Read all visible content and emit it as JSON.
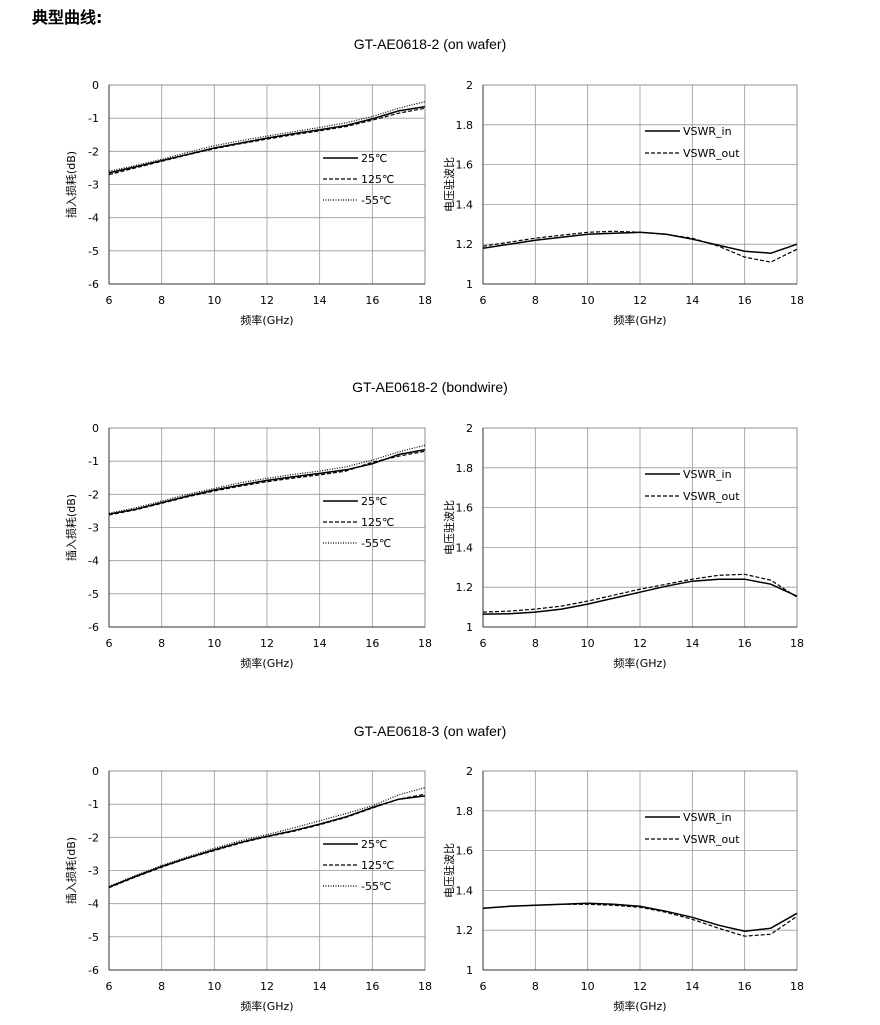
{
  "page": {
    "heading": "典型曲线:"
  },
  "sections": [
    {
      "title": "GT-AE0618-2  (on wafer)"
    },
    {
      "title": "GT-AE0618-2  (bondwire)"
    },
    {
      "title": "GT-AE0618-3  (on wafer)"
    }
  ],
  "chart_data": [
    {
      "type": "line",
      "xlabel": "频率(GHz)",
      "ylabel": "插入损耗(dB)",
      "xlim": [
        6,
        18
      ],
      "ylim": [
        -6,
        0
      ],
      "xticks": [
        6,
        8,
        10,
        12,
        14,
        16,
        18
      ],
      "yticks": [
        0,
        -1,
        -2,
        -3,
        -4,
        -5,
        -6
      ],
      "grid": true,
      "legend": "center-right",
      "x": [
        6,
        7,
        8,
        9,
        10,
        11,
        12,
        13,
        14,
        15,
        16,
        17,
        18
      ],
      "series": [
        {
          "name": "25℃",
          "style": "solid",
          "values": [
            -2.65,
            -2.47,
            -2.28,
            -2.09,
            -1.9,
            -1.75,
            -1.6,
            -1.47,
            -1.35,
            -1.22,
            -1.02,
            -0.78,
            -0.65
          ]
        },
        {
          "name": "125℃",
          "style": "dashed",
          "values": [
            -2.7,
            -2.5,
            -2.3,
            -2.1,
            -1.92,
            -1.77,
            -1.63,
            -1.5,
            -1.38,
            -1.25,
            -1.06,
            -0.85,
            -0.7
          ]
        },
        {
          "name": "-55℃",
          "style": "dotted",
          "values": [
            -2.6,
            -2.43,
            -2.24,
            -2.03,
            -1.83,
            -1.68,
            -1.54,
            -1.41,
            -1.28,
            -1.14,
            -0.95,
            -0.7,
            -0.5
          ]
        }
      ]
    },
    {
      "type": "line",
      "xlabel": "频率(GHz)",
      "ylabel": "电压驻波比",
      "xlim": [
        6,
        18
      ],
      "ylim": [
        1,
        2
      ],
      "xticks": [
        6,
        8,
        10,
        12,
        14,
        16,
        18
      ],
      "yticks": [
        2,
        1.8,
        1.6,
        1.4,
        1.2,
        1
      ],
      "grid": true,
      "legend": "top-right",
      "x": [
        6,
        7,
        8,
        9,
        10,
        11,
        12,
        13,
        14,
        15,
        16,
        17,
        18
      ],
      "series": [
        {
          "name": "VSWR_in",
          "style": "solid",
          "values": [
            1.18,
            1.2,
            1.22,
            1.235,
            1.25,
            1.255,
            1.26,
            1.25,
            1.225,
            1.195,
            1.165,
            1.155,
            1.2
          ]
        },
        {
          "name": "VSWR_out",
          "style": "dashed",
          "values": [
            1.19,
            1.21,
            1.23,
            1.245,
            1.26,
            1.265,
            1.26,
            1.25,
            1.23,
            1.19,
            1.135,
            1.11,
            1.175
          ]
        }
      ]
    },
    {
      "type": "line",
      "xlabel": "频率(GHz)",
      "ylabel": "插入损耗(dB)",
      "xlim": [
        6,
        18
      ],
      "ylim": [
        -6,
        0
      ],
      "xticks": [
        6,
        8,
        10,
        12,
        14,
        16,
        18
      ],
      "yticks": [
        0,
        -1,
        -2,
        -3,
        -4,
        -5,
        -6
      ],
      "grid": true,
      "legend": "center-right",
      "x": [
        6,
        7,
        8,
        9,
        10,
        11,
        12,
        13,
        14,
        15,
        16,
        17,
        18
      ],
      "series": [
        {
          "name": "25℃",
          "style": "solid",
          "values": [
            -2.6,
            -2.45,
            -2.25,
            -2.05,
            -1.87,
            -1.72,
            -1.58,
            -1.47,
            -1.37,
            -1.26,
            -1.08,
            -0.8,
            -0.65
          ]
        },
        {
          "name": "125℃",
          "style": "dashed",
          "values": [
            -2.62,
            -2.47,
            -2.27,
            -2.07,
            -1.9,
            -1.75,
            -1.62,
            -1.51,
            -1.41,
            -1.3,
            -1.03,
            -0.85,
            -0.7
          ]
        },
        {
          "name": "-55℃",
          "style": "dotted",
          "values": [
            -2.57,
            -2.41,
            -2.2,
            -2.0,
            -1.82,
            -1.65,
            -1.52,
            -1.4,
            -1.3,
            -1.17,
            -0.97,
            -0.72,
            -0.52
          ]
        }
      ]
    },
    {
      "type": "line",
      "xlabel": "频率(GHz)",
      "ylabel": "电压驻波比",
      "xlim": [
        6,
        18
      ],
      "ylim": [
        1,
        2
      ],
      "xticks": [
        6,
        8,
        10,
        12,
        14,
        16,
        18
      ],
      "yticks": [
        2,
        1.8,
        1.6,
        1.4,
        1.2,
        1
      ],
      "grid": true,
      "legend": "top-right",
      "x": [
        6,
        7,
        8,
        9,
        10,
        11,
        12,
        13,
        14,
        15,
        16,
        17,
        18
      ],
      "series": [
        {
          "name": "VSWR_in",
          "style": "solid",
          "values": [
            1.065,
            1.067,
            1.075,
            1.09,
            1.115,
            1.145,
            1.175,
            1.205,
            1.23,
            1.24,
            1.24,
            1.215,
            1.155
          ]
        },
        {
          "name": "VSWR_out",
          "style": "dashed",
          "values": [
            1.075,
            1.08,
            1.09,
            1.105,
            1.13,
            1.16,
            1.19,
            1.215,
            1.24,
            1.26,
            1.265,
            1.235,
            1.15
          ]
        }
      ]
    },
    {
      "type": "line",
      "xlabel": "频率(GHz)",
      "ylabel": "插入损耗(dB)",
      "xlim": [
        6,
        18
      ],
      "ylim": [
        -6,
        0
      ],
      "xticks": [
        6,
        8,
        10,
        12,
        14,
        16,
        18
      ],
      "yticks": [
        0,
        -1,
        -2,
        -3,
        -4,
        -5,
        -6
      ],
      "grid": true,
      "legend": "center-right",
      "x": [
        6,
        7,
        8,
        9,
        10,
        11,
        12,
        13,
        14,
        15,
        16,
        17,
        18
      ],
      "series": [
        {
          "name": "25℃",
          "style": "solid",
          "values": [
            -3.5,
            -3.18,
            -2.88,
            -2.62,
            -2.38,
            -2.15,
            -1.97,
            -1.8,
            -1.6,
            -1.38,
            -1.1,
            -0.85,
            -0.75
          ]
        },
        {
          "name": "125℃",
          "style": "dashed",
          "values": [
            -3.52,
            -3.2,
            -2.9,
            -2.63,
            -2.4,
            -2.17,
            -1.98,
            -1.82,
            -1.62,
            -1.4,
            -1.12,
            -0.85,
            -0.7
          ]
        },
        {
          "name": "-55℃",
          "style": "dotted",
          "values": [
            -3.48,
            -3.15,
            -2.85,
            -2.58,
            -2.33,
            -2.1,
            -1.92,
            -1.72,
            -1.5,
            -1.28,
            -1.05,
            -0.72,
            -0.5
          ]
        }
      ]
    },
    {
      "type": "line",
      "xlabel": "频率(GHz)",
      "ylabel": "电压驻波比",
      "xlim": [
        6,
        18
      ],
      "ylim": [
        1,
        2
      ],
      "xticks": [
        6,
        8,
        10,
        12,
        14,
        16,
        18
      ],
      "yticks": [
        2,
        1.8,
        1.6,
        1.4,
        1.2,
        1
      ],
      "grid": true,
      "legend": "top-right",
      "x": [
        6,
        7,
        8,
        9,
        10,
        11,
        12,
        13,
        14,
        15,
        16,
        17,
        18
      ],
      "series": [
        {
          "name": "VSWR_in",
          "style": "solid",
          "values": [
            1.31,
            1.32,
            1.325,
            1.33,
            1.335,
            1.33,
            1.32,
            1.295,
            1.265,
            1.225,
            1.195,
            1.21,
            1.285
          ]
        },
        {
          "name": "VSWR_out",
          "style": "dashed",
          "values": [
            1.31,
            1.32,
            1.325,
            1.33,
            1.33,
            1.325,
            1.315,
            1.29,
            1.255,
            1.21,
            1.17,
            1.18,
            1.27
          ]
        }
      ]
    }
  ]
}
